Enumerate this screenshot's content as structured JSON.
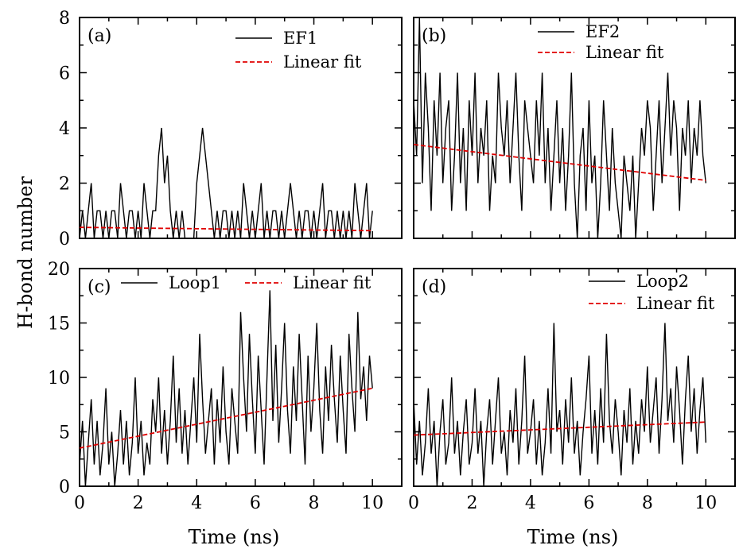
{
  "figure": {
    "ylabel": "H-bond number",
    "xlabel": "Time (ns)"
  },
  "chart_data": [
    {
      "type": "line",
      "panel_label": "(a)",
      "xlim": [
        0,
        11
      ],
      "ylim": [
        0,
        8
      ],
      "xticks": [
        "0",
        "2",
        "4",
        "6",
        "8",
        "10"
      ],
      "yticks": [
        "0",
        "2",
        "4",
        "6",
        "8"
      ],
      "legend_position": "top-right",
      "series": [
        {
          "name": "EF1",
          "color": "#000000",
          "x": [
            0.0,
            0.1,
            0.2,
            0.3,
            0.4,
            0.5,
            0.6,
            0.7,
            0.8,
            0.9,
            1.0,
            1.1,
            1.2,
            1.3,
            1.4,
            1.5,
            1.6,
            1.7,
            1.8,
            1.9,
            2.0,
            2.1,
            2.2,
            2.3,
            2.4,
            2.5,
            2.6,
            2.7,
            2.8,
            2.9,
            3.0,
            3.1,
            3.2,
            3.3,
            3.4,
            3.5,
            3.6,
            3.7,
            3.8,
            3.9,
            4.0,
            4.1,
            4.2,
            4.3,
            4.4,
            4.5,
            4.6,
            4.7,
            4.8,
            4.9,
            5.0,
            5.1,
            5.2,
            5.3,
            5.4,
            5.5,
            5.6,
            5.7,
            5.8,
            5.9,
            6.0,
            6.1,
            6.2,
            6.3,
            6.4,
            6.5,
            6.6,
            6.7,
            6.8,
            6.9,
            7.0,
            7.1,
            7.2,
            7.3,
            7.4,
            7.5,
            7.6,
            7.7,
            7.8,
            7.9,
            8.0,
            8.1,
            8.2,
            8.3,
            8.4,
            8.5,
            8.6,
            8.7,
            8.8,
            8.9,
            9.0,
            9.1,
            9.2,
            9.3,
            9.4,
            9.5,
            9.6,
            9.7,
            9.8,
            9.9,
            10.0
          ],
          "y": [
            0,
            1,
            0,
            1,
            2,
            0,
            1,
            1,
            0,
            1,
            0,
            1,
            1,
            0,
            2,
            1,
            0,
            1,
            1,
            0,
            1,
            0,
            2,
            1,
            0,
            1,
            1,
            3,
            4,
            2,
            3,
            1,
            0,
            1,
            0,
            1,
            0,
            0,
            0,
            0,
            2,
            3,
            4,
            3,
            2,
            1,
            0,
            1,
            0,
            1,
            1,
            0,
            1,
            0,
            1,
            0,
            2,
            1,
            0,
            1,
            0,
            1,
            2,
            0,
            1,
            0,
            1,
            1,
            0,
            1,
            0,
            1,
            2,
            1,
            0,
            1,
            0,
            1,
            1,
            0,
            1,
            0,
            1,
            2,
            0,
            1,
            1,
            0,
            1,
            0,
            1,
            0,
            1,
            0,
            2,
            1,
            0,
            1,
            2,
            0,
            1
          ]
        },
        {
          "name": "Linear fit",
          "color": "#e00000",
          "x": [
            0,
            1.5,
            10
          ],
          "y": [
            0.4,
            0.38,
            0.28
          ]
        }
      ]
    },
    {
      "type": "line",
      "panel_label": "(b)",
      "xlim": [
        0,
        11
      ],
      "ylim": [
        0,
        8
      ],
      "xticks": [
        "0",
        "2",
        "4",
        "6",
        "8",
        "10"
      ],
      "yticks": [
        "0",
        "2",
        "4",
        "6",
        "8"
      ],
      "legend_position": "top-right",
      "series": [
        {
          "name": "EF2",
          "color": "#000000",
          "x": [
            0.0,
            0.1,
            0.2,
            0.3,
            0.4,
            0.5,
            0.6,
            0.7,
            0.8,
            0.9,
            1.0,
            1.1,
            1.2,
            1.3,
            1.4,
            1.5,
            1.6,
            1.7,
            1.8,
            1.9,
            2.0,
            2.1,
            2.2,
            2.3,
            2.4,
            2.5,
            2.6,
            2.7,
            2.8,
            2.9,
            3.0,
            3.1,
            3.2,
            3.3,
            3.4,
            3.5,
            3.6,
            3.7,
            3.8,
            3.9,
            4.0,
            4.1,
            4.2,
            4.3,
            4.4,
            4.5,
            4.6,
            4.7,
            4.8,
            4.9,
            5.0,
            5.1,
            5.2,
            5.3,
            5.4,
            5.5,
            5.6,
            5.7,
            5.8,
            5.9,
            6.0,
            6.1,
            6.2,
            6.3,
            6.4,
            6.5,
            6.6,
            6.7,
            6.8,
            6.9,
            7.0,
            7.1,
            7.2,
            7.3,
            7.4,
            7.5,
            7.6,
            7.7,
            7.8,
            7.9,
            8.0,
            8.1,
            8.2,
            8.3,
            8.4,
            8.5,
            8.6,
            8.7,
            8.8,
            8.9,
            9.0,
            9.1,
            9.2,
            9.3,
            9.4,
            9.5,
            9.6,
            9.7,
            9.8,
            9.9,
            10.0
          ],
          "y": [
            5,
            3,
            8,
            2,
            6,
            4,
            1,
            5,
            3,
            6,
            2,
            4,
            5,
            1,
            3,
            6,
            2,
            4,
            1,
            5,
            3,
            6,
            2,
            4,
            3,
            5,
            1,
            3,
            2,
            6,
            4,
            3,
            5,
            2,
            4,
            6,
            3,
            1,
            5,
            4,
            3,
            2,
            5,
            3,
            6,
            2,
            4,
            1,
            3,
            5,
            2,
            4,
            1,
            3,
            6,
            2,
            0,
            3,
            4,
            1,
            5,
            2,
            3,
            0,
            2,
            5,
            3,
            1,
            4,
            2,
            1,
            0,
            3,
            2,
            1,
            3,
            0,
            2,
            4,
            3,
            5,
            4,
            1,
            3,
            5,
            2,
            4,
            6,
            3,
            5,
            4,
            1,
            4,
            3,
            5,
            2,
            4,
            3,
            5,
            3,
            2
          ]
        },
        {
          "name": "Linear fit",
          "color": "#e00000",
          "x": [
            0,
            10
          ],
          "y": [
            3.4,
            2.1
          ]
        }
      ]
    },
    {
      "type": "line",
      "panel_label": "(c)",
      "xlim": [
        0,
        11
      ],
      "ylim": [
        0,
        20
      ],
      "xticks": [
        "0",
        "2",
        "4",
        "6",
        "8",
        "10"
      ],
      "yticks": [
        "0",
        "5",
        "10",
        "15",
        "20"
      ],
      "legend_position": "top",
      "series": [
        {
          "name": "Loop1",
          "color": "#000000",
          "x": [
            0.0,
            0.1,
            0.2,
            0.3,
            0.4,
            0.5,
            0.6,
            0.7,
            0.8,
            0.9,
            1.0,
            1.1,
            1.2,
            1.3,
            1.4,
            1.5,
            1.6,
            1.7,
            1.8,
            1.9,
            2.0,
            2.1,
            2.2,
            2.3,
            2.4,
            2.5,
            2.6,
            2.7,
            2.8,
            2.9,
            3.0,
            3.1,
            3.2,
            3.3,
            3.4,
            3.5,
            3.6,
            3.7,
            3.8,
            3.9,
            4.0,
            4.1,
            4.2,
            4.3,
            4.4,
            4.5,
            4.6,
            4.7,
            4.8,
            4.9,
            5.0,
            5.1,
            5.2,
            5.3,
            5.4,
            5.5,
            5.6,
            5.7,
            5.8,
            5.9,
            6.0,
            6.1,
            6.2,
            6.3,
            6.4,
            6.5,
            6.6,
            6.7,
            6.8,
            6.9,
            7.0,
            7.1,
            7.2,
            7.3,
            7.4,
            7.5,
            7.6,
            7.7,
            7.8,
            7.9,
            8.0,
            8.1,
            8.2,
            8.3,
            8.4,
            8.5,
            8.6,
            8.7,
            8.8,
            8.9,
            9.0,
            9.1,
            9.2,
            9.3,
            9.4,
            9.5,
            9.6,
            9.7,
            9.8,
            9.9,
            10.0
          ],
          "y": [
            2,
            6,
            0,
            4,
            8,
            2,
            6,
            1,
            4,
            9,
            2,
            5,
            0,
            3,
            7,
            2,
            6,
            1,
            4,
            10,
            3,
            6,
            1,
            4,
            2,
            8,
            5,
            10,
            3,
            7,
            2,
            6,
            12,
            4,
            9,
            3,
            7,
            2,
            6,
            10,
            4,
            14,
            8,
            3,
            6,
            9,
            2,
            8,
            4,
            11,
            5,
            2,
            9,
            6,
            3,
            16,
            10,
            5,
            14,
            8,
            3,
            12,
            7,
            2,
            10,
            18,
            6,
            13,
            4,
            9,
            15,
            7,
            3,
            11,
            6,
            14,
            8,
            2,
            12,
            5,
            9,
            15,
            7,
            3,
            11,
            6,
            13,
            8,
            4,
            12,
            7,
            3,
            14,
            9,
            5,
            16,
            8,
            11,
            6,
            12,
            9
          ]
        },
        {
          "name": "Linear fit",
          "color": "#e00000",
          "x": [
            0,
            10
          ],
          "y": [
            3.5,
            9.0
          ]
        }
      ]
    },
    {
      "type": "line",
      "panel_label": "(d)",
      "xlim": [
        0,
        11
      ],
      "ylim": [
        0,
        20
      ],
      "xticks": [
        "0",
        "2",
        "4",
        "6",
        "8",
        "10"
      ],
      "yticks": [
        "0",
        "5",
        "10",
        "15",
        "20"
      ],
      "legend_position": "top-right",
      "series": [
        {
          "name": "Loop2",
          "color": "#000000",
          "x": [
            0.0,
            0.1,
            0.2,
            0.3,
            0.4,
            0.5,
            0.6,
            0.7,
            0.8,
            0.9,
            1.0,
            1.1,
            1.2,
            1.3,
            1.4,
            1.5,
            1.6,
            1.7,
            1.8,
            1.9,
            2.0,
            2.1,
            2.2,
            2.3,
            2.4,
            2.5,
            2.6,
            2.7,
            2.8,
            2.9,
            3.0,
            3.1,
            3.2,
            3.3,
            3.4,
            3.5,
            3.6,
            3.7,
            3.8,
            3.9,
            4.0,
            4.1,
            4.2,
            4.3,
            4.4,
            4.5,
            4.6,
            4.7,
            4.8,
            4.9,
            5.0,
            5.1,
            5.2,
            5.3,
            5.4,
            5.5,
            5.6,
            5.7,
            5.8,
            5.9,
            6.0,
            6.1,
            6.2,
            6.3,
            6.4,
            6.5,
            6.6,
            6.7,
            6.8,
            6.9,
            7.0,
            7.1,
            7.2,
            7.3,
            7.4,
            7.5,
            7.6,
            7.7,
            7.8,
            7.9,
            8.0,
            8.1,
            8.2,
            8.3,
            8.4,
            8.5,
            8.6,
            8.7,
            8.8,
            8.9,
            9.0,
            9.1,
            9.2,
            9.3,
            9.4,
            9.5,
            9.6,
            9.7,
            9.8,
            9.9,
            10.0
          ],
          "y": [
            8,
            2,
            6,
            1,
            4,
            9,
            3,
            6,
            0,
            5,
            8,
            2,
            4,
            10,
            3,
            6,
            1,
            5,
            8,
            2,
            4,
            9,
            3,
            6,
            0,
            5,
            8,
            2,
            6,
            10,
            3,
            5,
            1,
            7,
            4,
            9,
            2,
            6,
            12,
            3,
            5,
            8,
            2,
            6,
            1,
            4,
            9,
            3,
            15,
            5,
            7,
            2,
            8,
            4,
            10,
            3,
            6,
            1,
            5,
            8,
            12,
            3,
            7,
            2,
            9,
            4,
            14,
            6,
            3,
            8,
            5,
            1,
            7,
            4,
            9,
            2,
            6,
            3,
            8,
            5,
            11,
            4,
            7,
            10,
            3,
            8,
            15,
            6,
            9,
            4,
            11,
            7,
            2,
            8,
            12,
            5,
            9,
            3,
            7,
            10,
            4
          ]
        },
        {
          "name": "Linear fit",
          "color": "#e00000",
          "x": [
            0,
            10
          ],
          "y": [
            4.7,
            5.9
          ]
        }
      ]
    }
  ]
}
